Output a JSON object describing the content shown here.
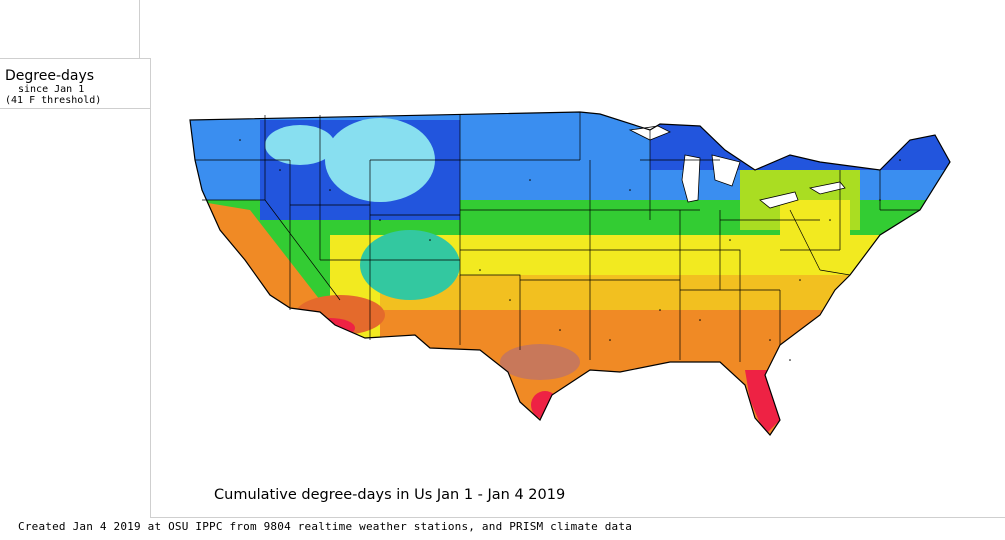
{
  "legend": {
    "title": "Degree-days",
    "subtitle": "since Jan 1",
    "threshold": "(41 F threshold)"
  },
  "map": {
    "title": "Cumulative degree-days in Us  Jan 1 - Jan 4 2019",
    "colors": {
      "cold": "#2255dd",
      "cool_blue": "#3a8ef0",
      "ice": "#88dff0",
      "cyan_green": "#33c8a0",
      "green": "#33cc33",
      "yellow_green": "#aadd22",
      "yellow": "#f2ea20",
      "yellow_orange": "#f2c020",
      "orange": "#f08a25",
      "dark_orange": "#e46a2c",
      "brown": "#c8785a",
      "red": "#ee2244",
      "pink": "#ff4466",
      "lake": "#ffffff",
      "border": "#000000"
    }
  },
  "footer": {
    "credit": "Created Jan 4 2019 at OSU IPPC from 9804 realtime weather stations, and PRISM climate data"
  }
}
